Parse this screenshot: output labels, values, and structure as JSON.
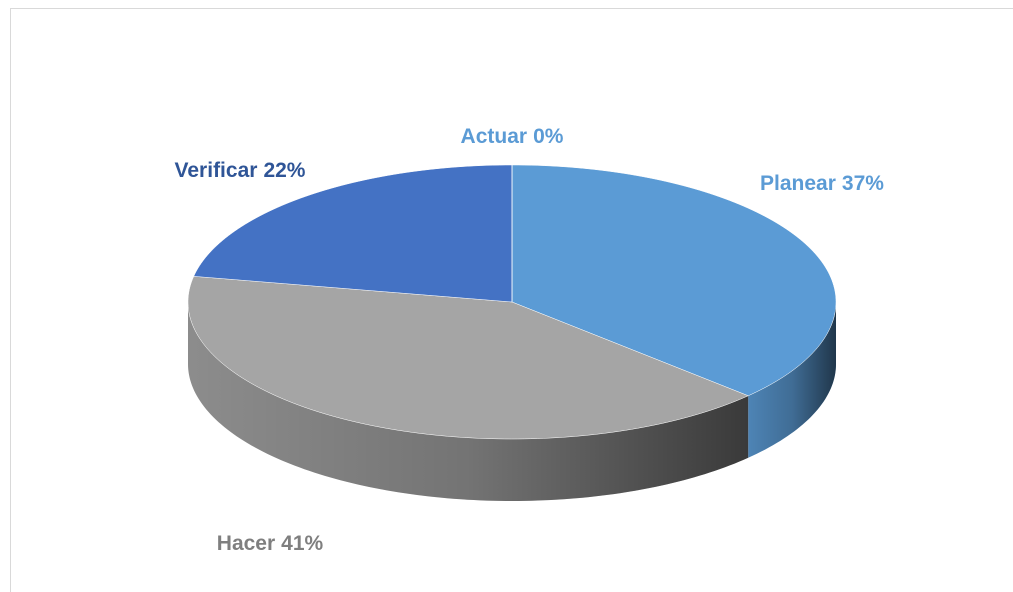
{
  "chart_data": {
    "type": "pie",
    "categories": [
      "Planear",
      "Hacer",
      "Verificar",
      "Actuar"
    ],
    "values": [
      37,
      41,
      22,
      0
    ],
    "value_labels": [
      "37%",
      "41%",
      "22%",
      "0%"
    ],
    "colors": [
      "#5b9bd5",
      "#a5a5a5",
      "#4472c4",
      "#5b9bd5"
    ],
    "label_colors": [
      "#5b9bd5",
      "#7f7f7f",
      "#2f5597",
      "#5b9bd5"
    ]
  }
}
